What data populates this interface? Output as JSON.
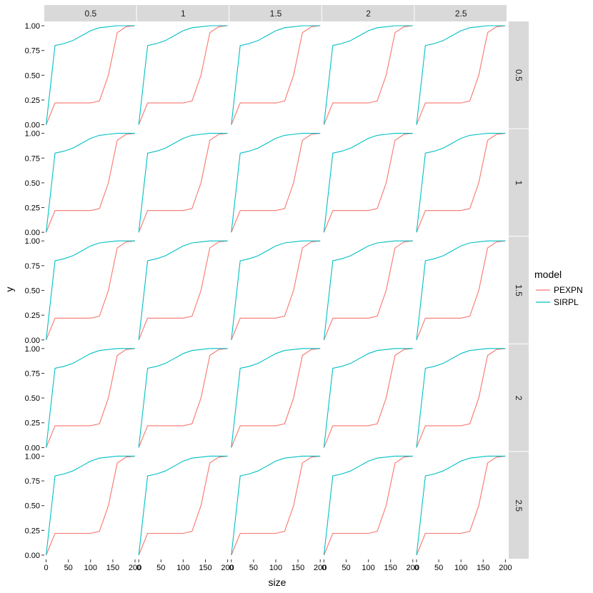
{
  "chart_data": {
    "type": "line",
    "facet": {
      "columns": [
        "0.5",
        "1",
        "1.5",
        "2",
        "2.5"
      ],
      "rows": [
        "0.5",
        "1",
        "1.5",
        "2",
        "2.5"
      ]
    },
    "xlabel": "size",
    "ylabel": "y",
    "xlim": [
      0,
      200
    ],
    "ylim": [
      0,
      1
    ],
    "x_ticks": [
      "0",
      "50",
      "100",
      "150",
      "200"
    ],
    "y_ticks": [
      "0.00",
      "0.25",
      "0.50",
      "0.75",
      "1.00"
    ],
    "legend": {
      "title": "model",
      "position": "right",
      "entries": [
        "PEXPN",
        "SIRPL"
      ]
    },
    "colors": {
      "PEXPN": "#F8766D",
      "SIRPL": "#00BFC4"
    },
    "grid": false,
    "series": [
      {
        "name": "PEXPN",
        "color": "#F8766D",
        "x": [
          0,
          20,
          40,
          60,
          80,
          100,
          120,
          140,
          160,
          180,
          200
        ],
        "values": [
          0.0,
          0.22,
          0.22,
          0.22,
          0.22,
          0.22,
          0.24,
          0.5,
          0.93,
          0.99,
          1.0
        ]
      },
      {
        "name": "SIRPL",
        "color": "#00BFC4",
        "x": [
          0,
          20,
          40,
          60,
          80,
          100,
          120,
          140,
          160,
          180,
          200
        ],
        "values": [
          0.0,
          0.8,
          0.82,
          0.85,
          0.9,
          0.95,
          0.98,
          0.99,
          1.0,
          1.0,
          1.0
        ]
      }
    ]
  }
}
